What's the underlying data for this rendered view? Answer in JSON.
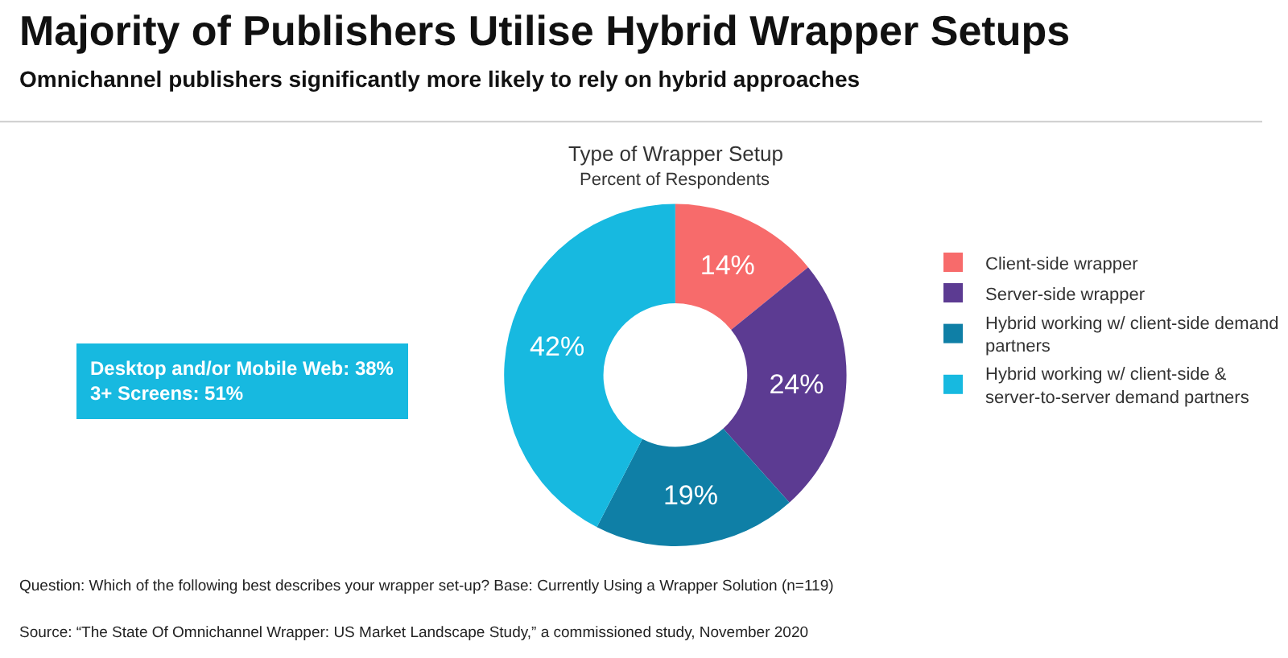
{
  "chart_data": {
    "type": "donut",
    "title": "Majority of Publishers Utilise Hybrid Wrapper Setups",
    "subtitle": "Omnichannel publishers significantly more likely to rely on hybrid approaches",
    "categories": [
      "Client-side wrapper",
      "Server-side wrapper",
      "Hybrid working w/ client-side demand partners",
      "Hybrid working w/ client-side & server-to-server demand partners"
    ],
    "values": [
      14,
      24,
      19,
      42
    ],
    "colors": [
      "#f76b6b",
      "#5c3b92",
      "#0f7fa6",
      "#17b9e0"
    ],
    "value_labels": [
      "14%",
      "24%",
      "19%",
      "42%"
    ],
    "legend": "right",
    "annotations": [
      "Type of Wrapper Setup",
      "Percent of Respondents",
      "Desktop and/or Mobile Web: 38%\n3+ Screens: 51%",
      "Question: Which of the following best describes your wrapper set-up? Base: Currently Using a Wrapper Solution (n=119)",
      "Source: “The State Of Omnichannel Wrapper: US Market Landscape Study,” a commissioned study, November 2020"
    ]
  }
}
